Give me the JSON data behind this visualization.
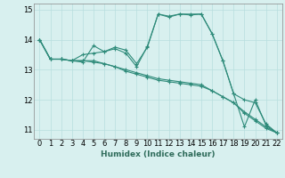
{
  "xlabel": "Humidex (Indice chaleur)",
  "x_values": [
    0,
    1,
    2,
    3,
    4,
    5,
    6,
    7,
    8,
    9,
    10,
    11,
    12,
    13,
    14,
    15,
    16,
    17,
    18,
    19,
    20,
    21,
    22
  ],
  "series": [
    [
      14.0,
      13.35,
      13.35,
      13.3,
      13.25,
      13.8,
      13.6,
      13.75,
      13.65,
      13.2,
      13.75,
      14.85,
      14.78,
      14.85,
      14.85,
      14.85,
      14.2,
      13.3,
      12.2,
      11.1,
      12.0,
      11.15,
      10.9
    ],
    [
      14.0,
      13.35,
      13.35,
      13.3,
      13.5,
      13.55,
      13.6,
      13.7,
      13.55,
      13.1,
      13.78,
      14.85,
      14.75,
      14.85,
      14.82,
      14.85,
      14.2,
      13.3,
      12.2,
      12.0,
      11.9,
      11.2,
      10.9
    ],
    [
      14.0,
      13.35,
      13.35,
      13.3,
      13.3,
      13.3,
      13.2,
      13.1,
      13.0,
      12.9,
      12.8,
      12.7,
      12.65,
      12.6,
      12.55,
      12.5,
      12.3,
      12.1,
      11.9,
      11.6,
      11.35,
      11.1,
      10.9
    ],
    [
      14.0,
      13.35,
      13.35,
      13.3,
      13.3,
      13.25,
      13.2,
      13.1,
      12.95,
      12.85,
      12.75,
      12.65,
      12.6,
      12.55,
      12.5,
      12.45,
      12.3,
      12.1,
      11.9,
      11.55,
      11.3,
      11.05,
      10.9
    ]
  ],
  "line_color": "#2e8b7a",
  "bg_color": "#d8f0ef",
  "grid_color": "#b8dede",
  "ylim": [
    10.7,
    15.2
  ],
  "yticks": [
    11,
    12,
    13,
    14,
    15
  ],
  "xticks": [
    0,
    1,
    2,
    3,
    4,
    5,
    6,
    7,
    8,
    9,
    10,
    11,
    12,
    13,
    14,
    15,
    16,
    17,
    18,
    19,
    20,
    21,
    22
  ],
  "marker": "+",
  "markersize": 3,
  "linewidth": 0.8,
  "label_fontsize": 6.5,
  "tick_fontsize": 6
}
